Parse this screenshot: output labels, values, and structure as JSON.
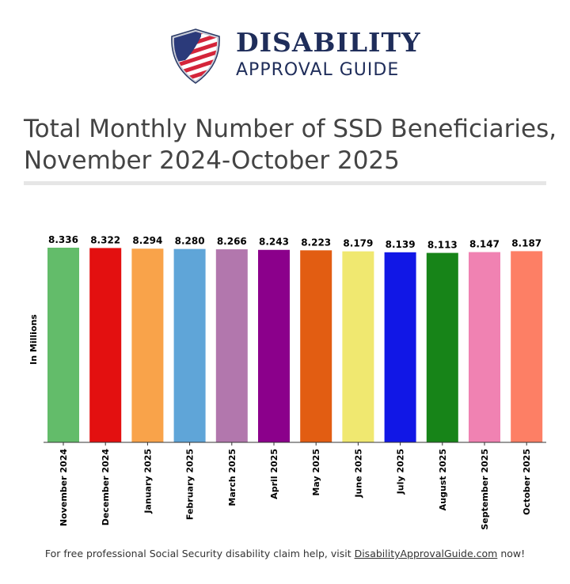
{
  "logo": {
    "line1": "DISABILITY",
    "line2": "APPROVAL GUIDE"
  },
  "title": "Total Monthly Number of SSD Beneficiaries, November 2024-October 2025",
  "chart_data": {
    "type": "bar",
    "ylabel": "In Millions",
    "ylim": [
      0,
      8.336
    ],
    "grid": false,
    "categories": [
      "November 2024",
      "December 2024",
      "January 2025",
      "February 2025",
      "March 2025",
      "April 2025",
      "May 2025",
      "June 2025",
      "July 2025",
      "August 2025",
      "September 2025",
      "October 2025"
    ],
    "values": [
      8.336,
      8.322,
      8.294,
      8.28,
      8.266,
      8.243,
      8.223,
      8.179,
      8.139,
      8.113,
      8.147,
      8.187
    ],
    "labels": [
      "8.336",
      "8.322",
      "8.294",
      "8.280",
      "8.266",
      "8.243",
      "8.223",
      "8.179",
      "8.139",
      "8.113",
      "8.147",
      "8.187"
    ],
    "colors": [
      "#63bc6a",
      "#e31010",
      "#f9a34a",
      "#5fa5d8",
      "#b277ad",
      "#8b008b",
      "#e25d12",
      "#f0e870",
      "#1117e6",
      "#178418",
      "#f082b2",
      "#fd7f65"
    ]
  },
  "footer": {
    "text": "For free professional Social Security disability claim help, visit ",
    "link": "DisabilityApprovalGuide.com",
    "suffix": " now!"
  }
}
